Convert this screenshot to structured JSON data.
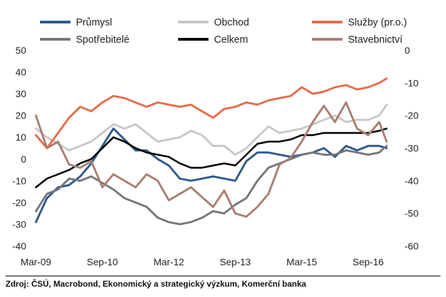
{
  "source": "Zdroj: ČSÚ, Macrobond, Ekonomický a strategický výzkum, Komerční banka",
  "chart_data": {
    "type": "line",
    "title": "",
    "xlabel": "",
    "ylabel": "",
    "x_start": "2009-03",
    "x_end": "2017-02",
    "x_ticks": [
      {
        "label": "Mar-09",
        "date": "2009-03"
      },
      {
        "label": "Sep-10",
        "date": "2010-09"
      },
      {
        "label": "Mar-12",
        "date": "2012-03"
      },
      {
        "label": "Sep-13",
        "date": "2013-09"
      },
      {
        "label": "Mar-15",
        "date": "2015-03"
      },
      {
        "label": "Sep-16",
        "date": "2016-09"
      }
    ],
    "y_left": {
      "min": -40,
      "max": 50,
      "ticks": [
        -40,
        -30,
        -20,
        -10,
        0,
        10,
        20,
        30,
        40,
        50
      ],
      "tick_labels": [
        "-40",
        "-30",
        "-20",
        "-10",
        "0",
        "10",
        "20",
        "30",
        "40",
        "50"
      ]
    },
    "y_right": {
      "min": -60,
      "max": 0,
      "ticks": [
        -60,
        -50,
        -40,
        -30,
        -20,
        -10,
        0
      ],
      "tick_labels": [
        "-60",
        "-50",
        "-40",
        "-30",
        "-20",
        "-10",
        "0"
      ]
    },
    "grid": false,
    "legend": {
      "placement": "top",
      "columns": 3
    },
    "series": [
      {
        "name": "Průmysl",
        "color": "#2e5a8e",
        "axis": "left",
        "points": [
          [
            "2009-03",
            -29
          ],
          [
            "2009-06",
            -18
          ],
          [
            "2009-09",
            -13
          ],
          [
            "2009-12",
            -12
          ],
          [
            "2010-03",
            -8
          ],
          [
            "2010-06",
            -2
          ],
          [
            "2010-09",
            6
          ],
          [
            "2010-12",
            14
          ],
          [
            "2011-03",
            9
          ],
          [
            "2011-06",
            4
          ],
          [
            "2011-09",
            4
          ],
          [
            "2011-12",
            0
          ],
          [
            "2012-03",
            -3
          ],
          [
            "2012-06",
            -9
          ],
          [
            "2012-09",
            -10
          ],
          [
            "2012-12",
            -9
          ],
          [
            "2013-03",
            -8
          ],
          [
            "2013-06",
            -9
          ],
          [
            "2013-09",
            -10
          ],
          [
            "2013-12",
            -1
          ],
          [
            "2014-03",
            3
          ],
          [
            "2014-06",
            3
          ],
          [
            "2014-09",
            2
          ],
          [
            "2014-12",
            1
          ],
          [
            "2015-03",
            2
          ],
          [
            "2015-06",
            3
          ],
          [
            "2015-09",
            5
          ],
          [
            "2015-12",
            1
          ],
          [
            "2016-03",
            6
          ],
          [
            "2016-06",
            4
          ],
          [
            "2016-09",
            6
          ],
          [
            "2016-12",
            6
          ],
          [
            "2017-02",
            5
          ]
        ]
      },
      {
        "name": "Obchod",
        "color": "#c8c8c8",
        "axis": "left",
        "points": [
          [
            "2009-03",
            14
          ],
          [
            "2009-06",
            10
          ],
          [
            "2009-09",
            7
          ],
          [
            "2009-12",
            4
          ],
          [
            "2010-03",
            6
          ],
          [
            "2010-06",
            8
          ],
          [
            "2010-09",
            12
          ],
          [
            "2010-12",
            16
          ],
          [
            "2011-03",
            14
          ],
          [
            "2011-06",
            16
          ],
          [
            "2011-09",
            12
          ],
          [
            "2011-12",
            8
          ],
          [
            "2012-03",
            9
          ],
          [
            "2012-06",
            10
          ],
          [
            "2012-09",
            13
          ],
          [
            "2012-12",
            11
          ],
          [
            "2013-03",
            6
          ],
          [
            "2013-06",
            6
          ],
          [
            "2013-09",
            2
          ],
          [
            "2013-12",
            5
          ],
          [
            "2014-03",
            10
          ],
          [
            "2014-06",
            15
          ],
          [
            "2014-09",
            12
          ],
          [
            "2014-12",
            13
          ],
          [
            "2015-03",
            14
          ],
          [
            "2015-06",
            16
          ],
          [
            "2015-09",
            18
          ],
          [
            "2015-12",
            20
          ],
          [
            "2016-03",
            17
          ],
          [
            "2016-06",
            18
          ],
          [
            "2016-09",
            18
          ],
          [
            "2016-12",
            20
          ],
          [
            "2017-02",
            25
          ]
        ]
      },
      {
        "name": "Služby (pr.o.)",
        "color": "#e46e4c",
        "axis": "left",
        "points": [
          [
            "2009-03",
            11
          ],
          [
            "2009-06",
            5
          ],
          [
            "2009-09",
            12
          ],
          [
            "2009-12",
            19
          ],
          [
            "2010-03",
            24
          ],
          [
            "2010-06",
            22
          ],
          [
            "2010-09",
            26
          ],
          [
            "2010-12",
            29
          ],
          [
            "2011-03",
            28
          ],
          [
            "2011-06",
            26
          ],
          [
            "2011-09",
            24
          ],
          [
            "2011-12",
            26
          ],
          [
            "2012-03",
            25
          ],
          [
            "2012-06",
            24
          ],
          [
            "2012-09",
            25
          ],
          [
            "2012-12",
            22
          ],
          [
            "2013-03",
            19
          ],
          [
            "2013-06",
            23
          ],
          [
            "2013-09",
            24
          ],
          [
            "2013-12",
            26
          ],
          [
            "2014-03",
            25
          ],
          [
            "2014-06",
            27
          ],
          [
            "2014-09",
            28
          ],
          [
            "2014-12",
            29
          ],
          [
            "2015-03",
            33
          ],
          [
            "2015-06",
            30
          ],
          [
            "2015-09",
            31
          ],
          [
            "2015-12",
            33
          ],
          [
            "2016-03",
            34
          ],
          [
            "2016-06",
            32
          ],
          [
            "2016-09",
            33
          ],
          [
            "2016-12",
            35
          ],
          [
            "2017-02",
            37
          ]
        ]
      },
      {
        "name": "Spotřebitelé",
        "color": "#76767c",
        "axis": "left",
        "points": [
          [
            "2009-03",
            -24
          ],
          [
            "2009-06",
            -16
          ],
          [
            "2009-09",
            -14
          ],
          [
            "2009-12",
            -9
          ],
          [
            "2010-03",
            -10
          ],
          [
            "2010-06",
            -8
          ],
          [
            "2010-09",
            -11
          ],
          [
            "2010-12",
            -14
          ],
          [
            "2011-03",
            -18
          ],
          [
            "2011-06",
            -20
          ],
          [
            "2011-09",
            -22
          ],
          [
            "2011-12",
            -27
          ],
          [
            "2012-03",
            -29
          ],
          [
            "2012-06",
            -30
          ],
          [
            "2012-09",
            -29
          ],
          [
            "2012-12",
            -27
          ],
          [
            "2013-03",
            -24
          ],
          [
            "2013-06",
            -25
          ],
          [
            "2013-09",
            -21
          ],
          [
            "2013-12",
            -18
          ],
          [
            "2014-03",
            -10
          ],
          [
            "2014-06",
            -4
          ],
          [
            "2014-09",
            -2
          ],
          [
            "2014-12",
            0
          ],
          [
            "2015-03",
            2
          ],
          [
            "2015-06",
            3
          ],
          [
            "2015-09",
            2
          ],
          [
            "2015-12",
            2
          ],
          [
            "2016-03",
            4
          ],
          [
            "2016-06",
            3
          ],
          [
            "2016-09",
            2
          ],
          [
            "2016-12",
            3
          ],
          [
            "2017-02",
            6
          ]
        ]
      },
      {
        "name": "Celkem",
        "color": "#000000",
        "axis": "left",
        "points": [
          [
            "2009-03",
            -13
          ],
          [
            "2009-06",
            -9
          ],
          [
            "2009-09",
            -7
          ],
          [
            "2009-12",
            -5
          ],
          [
            "2010-03",
            -2
          ],
          [
            "2010-06",
            0
          ],
          [
            "2010-09",
            5
          ],
          [
            "2010-12",
            10
          ],
          [
            "2011-03",
            8
          ],
          [
            "2011-06",
            5
          ],
          [
            "2011-09",
            3
          ],
          [
            "2011-12",
            2
          ],
          [
            "2012-03",
            1
          ],
          [
            "2012-06",
            -2
          ],
          [
            "2012-09",
            -4
          ],
          [
            "2012-12",
            -4
          ],
          [
            "2013-03",
            -3
          ],
          [
            "2013-06",
            -2
          ],
          [
            "2013-09",
            -3
          ],
          [
            "2013-12",
            2
          ],
          [
            "2014-03",
            7
          ],
          [
            "2014-06",
            8
          ],
          [
            "2014-09",
            8
          ],
          [
            "2014-12",
            9
          ],
          [
            "2015-03",
            11
          ],
          [
            "2015-06",
            11
          ],
          [
            "2015-09",
            12
          ],
          [
            "2015-12",
            12
          ],
          [
            "2016-03",
            12
          ],
          [
            "2016-06",
            12
          ],
          [
            "2016-09",
            12
          ],
          [
            "2016-12",
            13
          ],
          [
            "2017-02",
            14
          ]
        ]
      },
      {
        "name": "Stavebnictví",
        "color": "#a97f72",
        "axis": "right",
        "points": [
          [
            "2009-03",
            -20
          ],
          [
            "2009-06",
            -30
          ],
          [
            "2009-09",
            -28
          ],
          [
            "2009-12",
            -35
          ],
          [
            "2010-03",
            -36
          ],
          [
            "2010-06",
            -34
          ],
          [
            "2010-09",
            -42
          ],
          [
            "2010-12",
            -38
          ],
          [
            "2011-03",
            -40
          ],
          [
            "2011-06",
            -42
          ],
          [
            "2011-09",
            -38
          ],
          [
            "2011-12",
            -40
          ],
          [
            "2012-03",
            -46
          ],
          [
            "2012-06",
            -44
          ],
          [
            "2012-09",
            -42
          ],
          [
            "2012-12",
            -45
          ],
          [
            "2013-03",
            -48
          ],
          [
            "2013-06",
            -43
          ],
          [
            "2013-09",
            -50
          ],
          [
            "2013-12",
            -51
          ],
          [
            "2014-03",
            -48
          ],
          [
            "2014-06",
            -44
          ],
          [
            "2014-09",
            -35
          ],
          [
            "2014-12",
            -33
          ],
          [
            "2015-03",
            -28
          ],
          [
            "2015-06",
            -22
          ],
          [
            "2015-09",
            -17
          ],
          [
            "2015-12",
            -22
          ],
          [
            "2016-03",
            -16
          ],
          [
            "2016-06",
            -24
          ],
          [
            "2016-09",
            -26
          ],
          [
            "2016-12",
            -22
          ],
          [
            "2017-02",
            -28
          ]
        ]
      }
    ]
  }
}
